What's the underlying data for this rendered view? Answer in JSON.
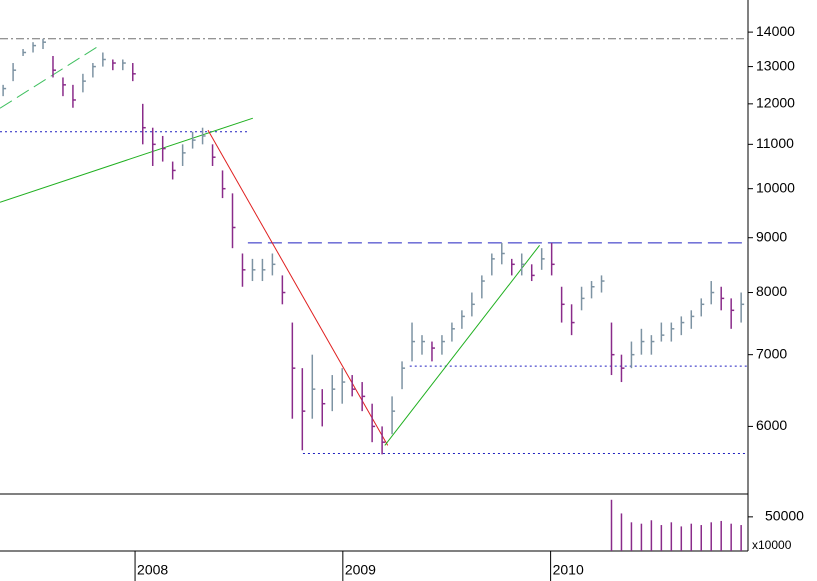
{
  "chart_data": {
    "type": "ohlc",
    "log_scale": true,
    "up_color": "#7d93a3",
    "down_color": "#8a2b8a",
    "xlim": [
      2007.35,
      2010.95
    ],
    "xticks": [
      2008,
      2009,
      2010
    ],
    "ylim": [
      5200,
      15000
    ],
    "yticks": [
      6000,
      7000,
      8000,
      9000,
      10000,
      11000,
      12000,
      13000,
      14000
    ],
    "x": [
      2007.365,
      2007.413,
      2007.461,
      2007.509,
      2007.557,
      2007.605,
      2007.653,
      2007.701,
      2007.749,
      2007.797,
      2007.845,
      2007.893,
      2007.941,
      2007.989,
      2008.037,
      2008.085,
      2008.133,
      2008.181,
      2008.229,
      2008.277,
      2008.325,
      2008.373,
      2008.421,
      2008.469,
      2008.517,
      2008.565,
      2008.613,
      2008.661,
      2008.709,
      2008.757,
      2008.805,
      2008.853,
      2008.901,
      2008.949,
      2008.997,
      2009.045,
      2009.093,
      2009.141,
      2009.189,
      2009.237,
      2009.285,
      2009.333,
      2009.381,
      2009.429,
      2009.477,
      2009.525,
      2009.573,
      2009.621,
      2009.669,
      2009.717,
      2009.765,
      2009.813,
      2009.861,
      2009.909,
      2009.957,
      2010.005,
      2010.053,
      2010.101,
      2010.149,
      2010.197,
      2010.245,
      2010.293,
      2010.341,
      2010.389,
      2010.437,
      2010.485,
      2010.533,
      2010.581,
      2010.629,
      2010.677,
      2010.725,
      2010.773,
      2010.821,
      2010.869,
      2010.917
    ],
    "high": [
      12500,
      13100,
      13500,
      13700,
      13800,
      13300,
      12700,
      12500,
      12800,
      13100,
      13400,
      13200,
      13200,
      13100,
      12000,
      11400,
      11200,
      10600,
      11000,
      11300,
      11400,
      11000,
      10400,
      9900,
      8700,
      8600,
      8600,
      8700,
      8300,
      7500,
      6800,
      7000,
      6500,
      6700,
      6800,
      6700,
      6600,
      6300,
      6000,
      6400,
      6900,
      7500,
      7300,
      7200,
      7300,
      7500,
      7700,
      8000,
      8300,
      8700,
      8900,
      8600,
      8700,
      8500,
      8800,
      8900,
      8100,
      7800,
      8100,
      8200,
      8300,
      7500,
      7000,
      7200,
      7400,
      7300,
      7500,
      7500,
      7600,
      7700,
      7900,
      8200,
      8100,
      7900,
      8000
    ],
    "low": [
      12200,
      12600,
      13300,
      13400,
      13500,
      12700,
      12200,
      11900,
      12300,
      12700,
      13000,
      12900,
      12900,
      12600,
      11000,
      10500,
      10600,
      10200,
      10500,
      10900,
      11000,
      10500,
      9800,
      8800,
      8100,
      8200,
      8200,
      8300,
      7800,
      6100,
      5700,
      6100,
      6000,
      6200,
      6300,
      6400,
      6200,
      5800,
      5650,
      5900,
      6500,
      6900,
      7000,
      6900,
      7000,
      7200,
      7400,
      7600,
      7900,
      8300,
      8500,
      8300,
      8300,
      8200,
      8400,
      8300,
      7500,
      7300,
      7700,
      7900,
      8000,
      6700,
      6600,
      6800,
      7000,
      7000,
      7200,
      7200,
      7300,
      7400,
      7600,
      7800,
      7700,
      7400,
      7500
    ],
    "close": [
      12400,
      12900,
      13400,
      13600,
      13700,
      12900,
      12500,
      12100,
      12600,
      13000,
      13200,
      13100,
      13100,
      12800,
      11400,
      11000,
      10900,
      10400,
      10800,
      11100,
      11200,
      10700,
      10000,
      9200,
      8400,
      8400,
      8400,
      8500,
      8000,
      6800,
      6200,
      6500,
      6300,
      6500,
      6600,
      6500,
      6400,
      6000,
      5800,
      6200,
      6800,
      7200,
      7200,
      7100,
      7200,
      7400,
      7600,
      7800,
      8200,
      8600,
      8700,
      8500,
      8500,
      8300,
      8600,
      8500,
      7800,
      7500,
      7900,
      8100,
      8200,
      7000,
      6800,
      7000,
      7200,
      7200,
      7300,
      7400,
      7500,
      7600,
      7800,
      8000,
      7900,
      7700,
      7800
    ],
    "volume": [
      null,
      null,
      null,
      null,
      null,
      null,
      null,
      null,
      null,
      null,
      null,
      null,
      null,
      null,
      null,
      null,
      null,
      null,
      null,
      null,
      null,
      null,
      null,
      null,
      null,
      null,
      null,
      null,
      null,
      null,
      null,
      null,
      null,
      null,
      null,
      null,
      null,
      null,
      null,
      null,
      null,
      null,
      null,
      null,
      null,
      null,
      null,
      null,
      null,
      null,
      null,
      null,
      null,
      null,
      null,
      null,
      null,
      null,
      null,
      null,
      null,
      75000,
      55000,
      42000,
      40000,
      45000,
      38000,
      42000,
      36000,
      40000,
      38000,
      42000,
      44000,
      40000,
      38000
    ],
    "volume_color": "#8a2b8a",
    "volume_ylim": [
      0,
      82000
    ],
    "volume_yticks": [
      50000
    ],
    "volume_unit_label": "x10000",
    "reference_lines": [
      {
        "value": 13800,
        "x": [
          2007.35,
          2010.95
        ],
        "color": "#707070",
        "dash": "dashdot"
      },
      {
        "value": 11300,
        "x": [
          2007.35,
          2008.553
        ],
        "color": "#2020c0",
        "dash": "dotted"
      },
      {
        "value": 8900,
        "x": [
          2008.543,
          2010.95
        ],
        "color": "#2020c0",
        "dash": "dashed"
      },
      {
        "value": 6830,
        "x": [
          2009.322,
          2010.95
        ],
        "color": "#2020c0",
        "dash": "dotted"
      },
      {
        "value": 5660,
        "x": [
          2008.808,
          2010.95
        ],
        "color": "#2020c0",
        "dash": "dotted"
      }
    ],
    "trend_lines": [
      {
        "x": [
          2007.35,
          2008.567
        ],
        "y": [
          9713,
          11636
        ],
        "color": "#20b020",
        "dash": "solid"
      },
      {
        "x": [
          2007.35,
          2007.832
        ],
        "y": [
          11887,
          13615
        ],
        "color": "#40c060",
        "dash": "dashed"
      },
      {
        "x": [
          2008.351,
          2009.216
        ],
        "y": [
          11340,
          5760
        ],
        "color": "#e02020",
        "dash": "solid"
      },
      {
        "x": [
          2009.202,
          2009.947
        ],
        "y": [
          5760,
          8855
        ],
        "color": "#20b020",
        "dash": "solid"
      }
    ]
  }
}
